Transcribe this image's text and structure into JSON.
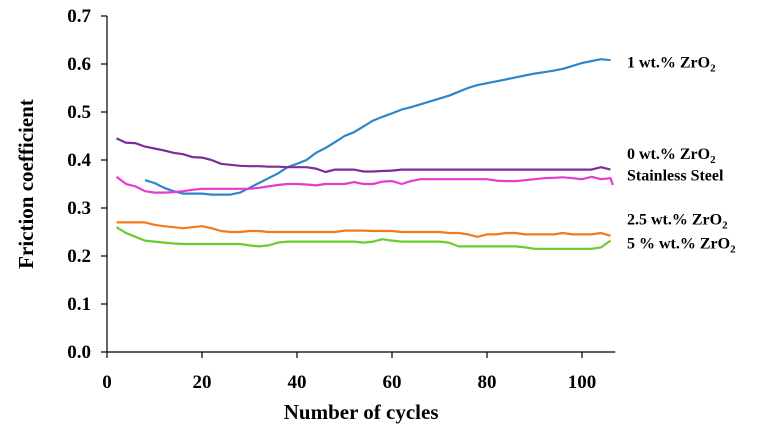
{
  "chart_data": {
    "type": "line",
    "title": "",
    "xlabel": "Number of cycles",
    "ylabel": "Friction coefficient",
    "xlim": [
      0,
      107
    ],
    "ylim": [
      0,
      0.7
    ],
    "x_ticks": [
      "0",
      "20",
      "40",
      "60",
      "80",
      "100"
    ],
    "y_ticks": [
      "0.0",
      "0.1",
      "0.2",
      "0.3",
      "0.4",
      "0.5",
      "0.6",
      "0.7"
    ],
    "grid": false,
    "legend": "none",
    "series": [
      {
        "name": "1 wt.% ZrO2",
        "label_main": "1 wt.% ZrO",
        "label_sub": "2",
        "label_y": 0.605,
        "color": "#2E86C8",
        "points": [
          [
            8,
            0.358
          ],
          [
            10,
            0.352
          ],
          [
            12,
            0.342
          ],
          [
            14,
            0.335
          ],
          [
            16,
            0.33
          ],
          [
            18,
            0.33
          ],
          [
            20,
            0.33
          ],
          [
            22,
            0.328
          ],
          [
            24,
            0.328
          ],
          [
            26,
            0.328
          ],
          [
            28,
            0.332
          ],
          [
            30,
            0.342
          ],
          [
            32,
            0.352
          ],
          [
            34,
            0.362
          ],
          [
            36,
            0.372
          ],
          [
            38,
            0.385
          ],
          [
            40,
            0.392
          ],
          [
            42,
            0.4
          ],
          [
            44,
            0.415
          ],
          [
            46,
            0.425
          ],
          [
            48,
            0.437
          ],
          [
            50,
            0.45
          ],
          [
            52,
            0.458
          ],
          [
            54,
            0.47
          ],
          [
            56,
            0.482
          ],
          [
            58,
            0.49
          ],
          [
            60,
            0.497
          ],
          [
            62,
            0.505
          ],
          [
            64,
            0.51
          ],
          [
            66,
            0.516
          ],
          [
            68,
            0.522
          ],
          [
            70,
            0.528
          ],
          [
            72,
            0.534
          ],
          [
            74,
            0.542
          ],
          [
            76,
            0.55
          ],
          [
            78,
            0.556
          ],
          [
            80,
            0.56
          ],
          [
            82,
            0.564
          ],
          [
            84,
            0.568
          ],
          [
            86,
            0.572
          ],
          [
            88,
            0.576
          ],
          [
            90,
            0.58
          ],
          [
            92,
            0.583
          ],
          [
            94,
            0.586
          ],
          [
            96,
            0.59
          ],
          [
            98,
            0.596
          ],
          [
            100,
            0.602
          ],
          [
            102,
            0.606
          ],
          [
            104,
            0.61
          ],
          [
            106,
            0.608
          ]
        ]
      },
      {
        "name": "0 wt.% ZrO2",
        "label_main": "0 wt.% ZrO",
        "label_sub": "2",
        "label_y": 0.415,
        "color": "#7B2D9B",
        "points": [
          [
            2,
            0.445
          ],
          [
            4,
            0.436
          ],
          [
            6,
            0.435
          ],
          [
            8,
            0.428
          ],
          [
            10,
            0.424
          ],
          [
            12,
            0.42
          ],
          [
            14,
            0.415
          ],
          [
            16,
            0.412
          ],
          [
            18,
            0.406
          ],
          [
            20,
            0.405
          ],
          [
            22,
            0.4
          ],
          [
            24,
            0.392
          ],
          [
            26,
            0.39
          ],
          [
            28,
            0.388
          ],
          [
            30,
            0.387
          ],
          [
            32,
            0.387
          ],
          [
            34,
            0.386
          ],
          [
            36,
            0.386
          ],
          [
            38,
            0.385
          ],
          [
            40,
            0.385
          ],
          [
            42,
            0.385
          ],
          [
            44,
            0.382
          ],
          [
            46,
            0.375
          ],
          [
            48,
            0.38
          ],
          [
            50,
            0.38
          ],
          [
            52,
            0.38
          ],
          [
            54,
            0.376
          ],
          [
            56,
            0.376
          ],
          [
            58,
            0.377
          ],
          [
            60,
            0.378
          ],
          [
            62,
            0.38
          ],
          [
            64,
            0.38
          ],
          [
            66,
            0.38
          ],
          [
            68,
            0.38
          ],
          [
            70,
            0.38
          ],
          [
            72,
            0.38
          ],
          [
            74,
            0.38
          ],
          [
            76,
            0.38
          ],
          [
            78,
            0.38
          ],
          [
            80,
            0.38
          ],
          [
            82,
            0.38
          ],
          [
            84,
            0.38
          ],
          [
            86,
            0.38
          ],
          [
            88,
            0.38
          ],
          [
            90,
            0.38
          ],
          [
            92,
            0.38
          ],
          [
            94,
            0.38
          ],
          [
            96,
            0.38
          ],
          [
            98,
            0.38
          ],
          [
            100,
            0.38
          ],
          [
            102,
            0.38
          ],
          [
            104,
            0.385
          ],
          [
            106,
            0.38
          ]
        ]
      },
      {
        "name": "Stainless Steel",
        "label_main": "Stainless Steel",
        "label_sub": "",
        "label_y": 0.37,
        "color": "#E83ACF",
        "points": [
          [
            2,
            0.365
          ],
          [
            4,
            0.35
          ],
          [
            6,
            0.345
          ],
          [
            8,
            0.335
          ],
          [
            10,
            0.332
          ],
          [
            12,
            0.332
          ],
          [
            14,
            0.333
          ],
          [
            16,
            0.335
          ],
          [
            18,
            0.338
          ],
          [
            20,
            0.34
          ],
          [
            22,
            0.34
          ],
          [
            24,
            0.34
          ],
          [
            26,
            0.34
          ],
          [
            28,
            0.34
          ],
          [
            30,
            0.34
          ],
          [
            32,
            0.342
          ],
          [
            34,
            0.345
          ],
          [
            36,
            0.348
          ],
          [
            38,
            0.35
          ],
          [
            40,
            0.35
          ],
          [
            42,
            0.349
          ],
          [
            44,
            0.347
          ],
          [
            46,
            0.35
          ],
          [
            48,
            0.35
          ],
          [
            50,
            0.35
          ],
          [
            52,
            0.354
          ],
          [
            54,
            0.35
          ],
          [
            56,
            0.35
          ],
          [
            58,
            0.355
          ],
          [
            60,
            0.356
          ],
          [
            62,
            0.35
          ],
          [
            64,
            0.356
          ],
          [
            66,
            0.36
          ],
          [
            68,
            0.36
          ],
          [
            70,
            0.36
          ],
          [
            72,
            0.36
          ],
          [
            74,
            0.36
          ],
          [
            76,
            0.36
          ],
          [
            78,
            0.36
          ],
          [
            80,
            0.36
          ],
          [
            82,
            0.357
          ],
          [
            84,
            0.356
          ],
          [
            86,
            0.356
          ],
          [
            88,
            0.358
          ],
          [
            90,
            0.36
          ],
          [
            92,
            0.362
          ],
          [
            94,
            0.363
          ],
          [
            96,
            0.364
          ],
          [
            98,
            0.362
          ],
          [
            100,
            0.36
          ],
          [
            102,
            0.365
          ],
          [
            104,
            0.36
          ],
          [
            106,
            0.362
          ],
          [
            106.5,
            0.348
          ]
        ]
      },
      {
        "name": "2.5 wt.% ZrO2",
        "label_main": "2.5 wt.% ZrO",
        "label_sub": "2",
        "label_y": 0.278,
        "color": "#F07A1C",
        "points": [
          [
            2,
            0.27
          ],
          [
            4,
            0.27
          ],
          [
            6,
            0.27
          ],
          [
            8,
            0.27
          ],
          [
            10,
            0.265
          ],
          [
            12,
            0.262
          ],
          [
            14,
            0.26
          ],
          [
            16,
            0.258
          ],
          [
            18,
            0.26
          ],
          [
            20,
            0.262
          ],
          [
            22,
            0.258
          ],
          [
            24,
            0.252
          ],
          [
            26,
            0.25
          ],
          [
            28,
            0.25
          ],
          [
            30,
            0.252
          ],
          [
            32,
            0.252
          ],
          [
            34,
            0.25
          ],
          [
            36,
            0.25
          ],
          [
            38,
            0.25
          ],
          [
            40,
            0.25
          ],
          [
            42,
            0.25
          ],
          [
            44,
            0.25
          ],
          [
            46,
            0.25
          ],
          [
            48,
            0.25
          ],
          [
            50,
            0.253
          ],
          [
            52,
            0.253
          ],
          [
            54,
            0.253
          ],
          [
            56,
            0.252
          ],
          [
            58,
            0.252
          ],
          [
            60,
            0.252
          ],
          [
            62,
            0.25
          ],
          [
            64,
            0.25
          ],
          [
            66,
            0.25
          ],
          [
            68,
            0.25
          ],
          [
            70,
            0.25
          ],
          [
            72,
            0.248
          ],
          [
            74,
            0.248
          ],
          [
            76,
            0.245
          ],
          [
            78,
            0.24
          ],
          [
            80,
            0.245
          ],
          [
            82,
            0.245
          ],
          [
            84,
            0.248
          ],
          [
            86,
            0.248
          ],
          [
            88,
            0.245
          ],
          [
            90,
            0.245
          ],
          [
            92,
            0.245
          ],
          [
            94,
            0.245
          ],
          [
            96,
            0.248
          ],
          [
            98,
            0.245
          ],
          [
            100,
            0.245
          ],
          [
            102,
            0.245
          ],
          [
            104,
            0.248
          ],
          [
            106,
            0.242
          ]
        ]
      },
      {
        "name": "5 % wt.% ZrO2",
        "label_main": "5 % wt.% ZrO",
        "label_sub": "2",
        "label_y": 0.228,
        "color": "#6CCB2E",
        "points": [
          [
            2,
            0.26
          ],
          [
            4,
            0.248
          ],
          [
            6,
            0.24
          ],
          [
            8,
            0.232
          ],
          [
            10,
            0.23
          ],
          [
            12,
            0.228
          ],
          [
            14,
            0.226
          ],
          [
            16,
            0.225
          ],
          [
            18,
            0.225
          ],
          [
            20,
            0.225
          ],
          [
            22,
            0.225
          ],
          [
            24,
            0.225
          ],
          [
            26,
            0.225
          ],
          [
            28,
            0.225
          ],
          [
            30,
            0.222
          ],
          [
            32,
            0.22
          ],
          [
            34,
            0.222
          ],
          [
            36,
            0.228
          ],
          [
            38,
            0.23
          ],
          [
            40,
            0.23
          ],
          [
            42,
            0.23
          ],
          [
            44,
            0.23
          ],
          [
            46,
            0.23
          ],
          [
            48,
            0.23
          ],
          [
            50,
            0.23
          ],
          [
            52,
            0.23
          ],
          [
            54,
            0.228
          ],
          [
            56,
            0.23
          ],
          [
            58,
            0.235
          ],
          [
            60,
            0.232
          ],
          [
            62,
            0.23
          ],
          [
            64,
            0.23
          ],
          [
            66,
            0.23
          ],
          [
            68,
            0.23
          ],
          [
            70,
            0.23
          ],
          [
            72,
            0.228
          ],
          [
            74,
            0.22
          ],
          [
            76,
            0.22
          ],
          [
            78,
            0.22
          ],
          [
            80,
            0.22
          ],
          [
            82,
            0.22
          ],
          [
            84,
            0.22
          ],
          [
            86,
            0.22
          ],
          [
            88,
            0.218
          ],
          [
            90,
            0.215
          ],
          [
            92,
            0.215
          ],
          [
            94,
            0.215
          ],
          [
            96,
            0.215
          ],
          [
            98,
            0.215
          ],
          [
            100,
            0.215
          ],
          [
            102,
            0.215
          ],
          [
            104,
            0.218
          ],
          [
            106,
            0.232
          ]
        ]
      }
    ]
  }
}
